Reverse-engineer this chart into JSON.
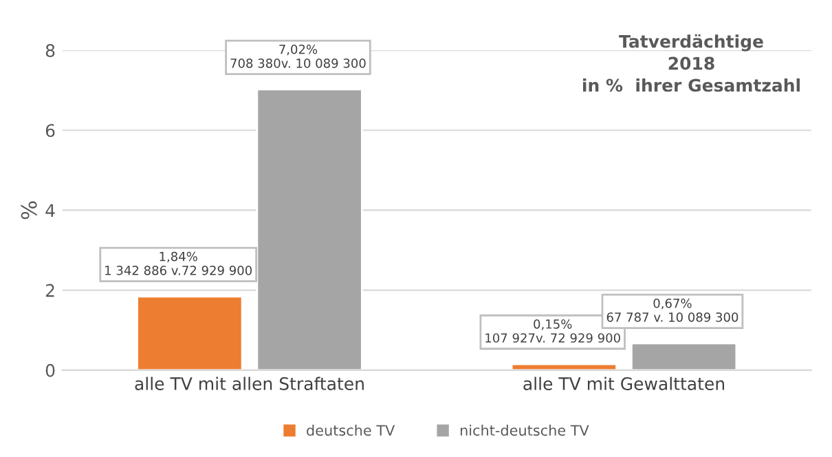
{
  "chart_data": {
    "type": "bar",
    "title": "Tatverdächtige\n2018\nin %  ihrer Gesamtzahl",
    "ylabel": "%",
    "categories": [
      "alle TV mit allen Straftaten",
      "alle TV mit Gewalttaten"
    ],
    "series": [
      {
        "name": "deutsche TV",
        "color": "#ed7d31",
        "values": [
          1.84,
          0.15
        ],
        "value_labels": [
          "1,84%\n1 342 886 v.72 929 900",
          "0,15%\n107 927v. 72 929 900"
        ]
      },
      {
        "name": "nicht-deutsche TV",
        "color": "#a5a5a5",
        "values": [
          7.02,
          0.67
        ],
        "value_labels": [
          "7,02%\n708 380v. 10 089 300",
          "0,67%\n67 787 v. 10 089 300"
        ]
      }
    ],
    "ylim": [
      0,
      8
    ],
    "yticks": [
      0,
      2,
      4,
      6,
      8
    ],
    "grid": "y",
    "legend": "bottom"
  }
}
